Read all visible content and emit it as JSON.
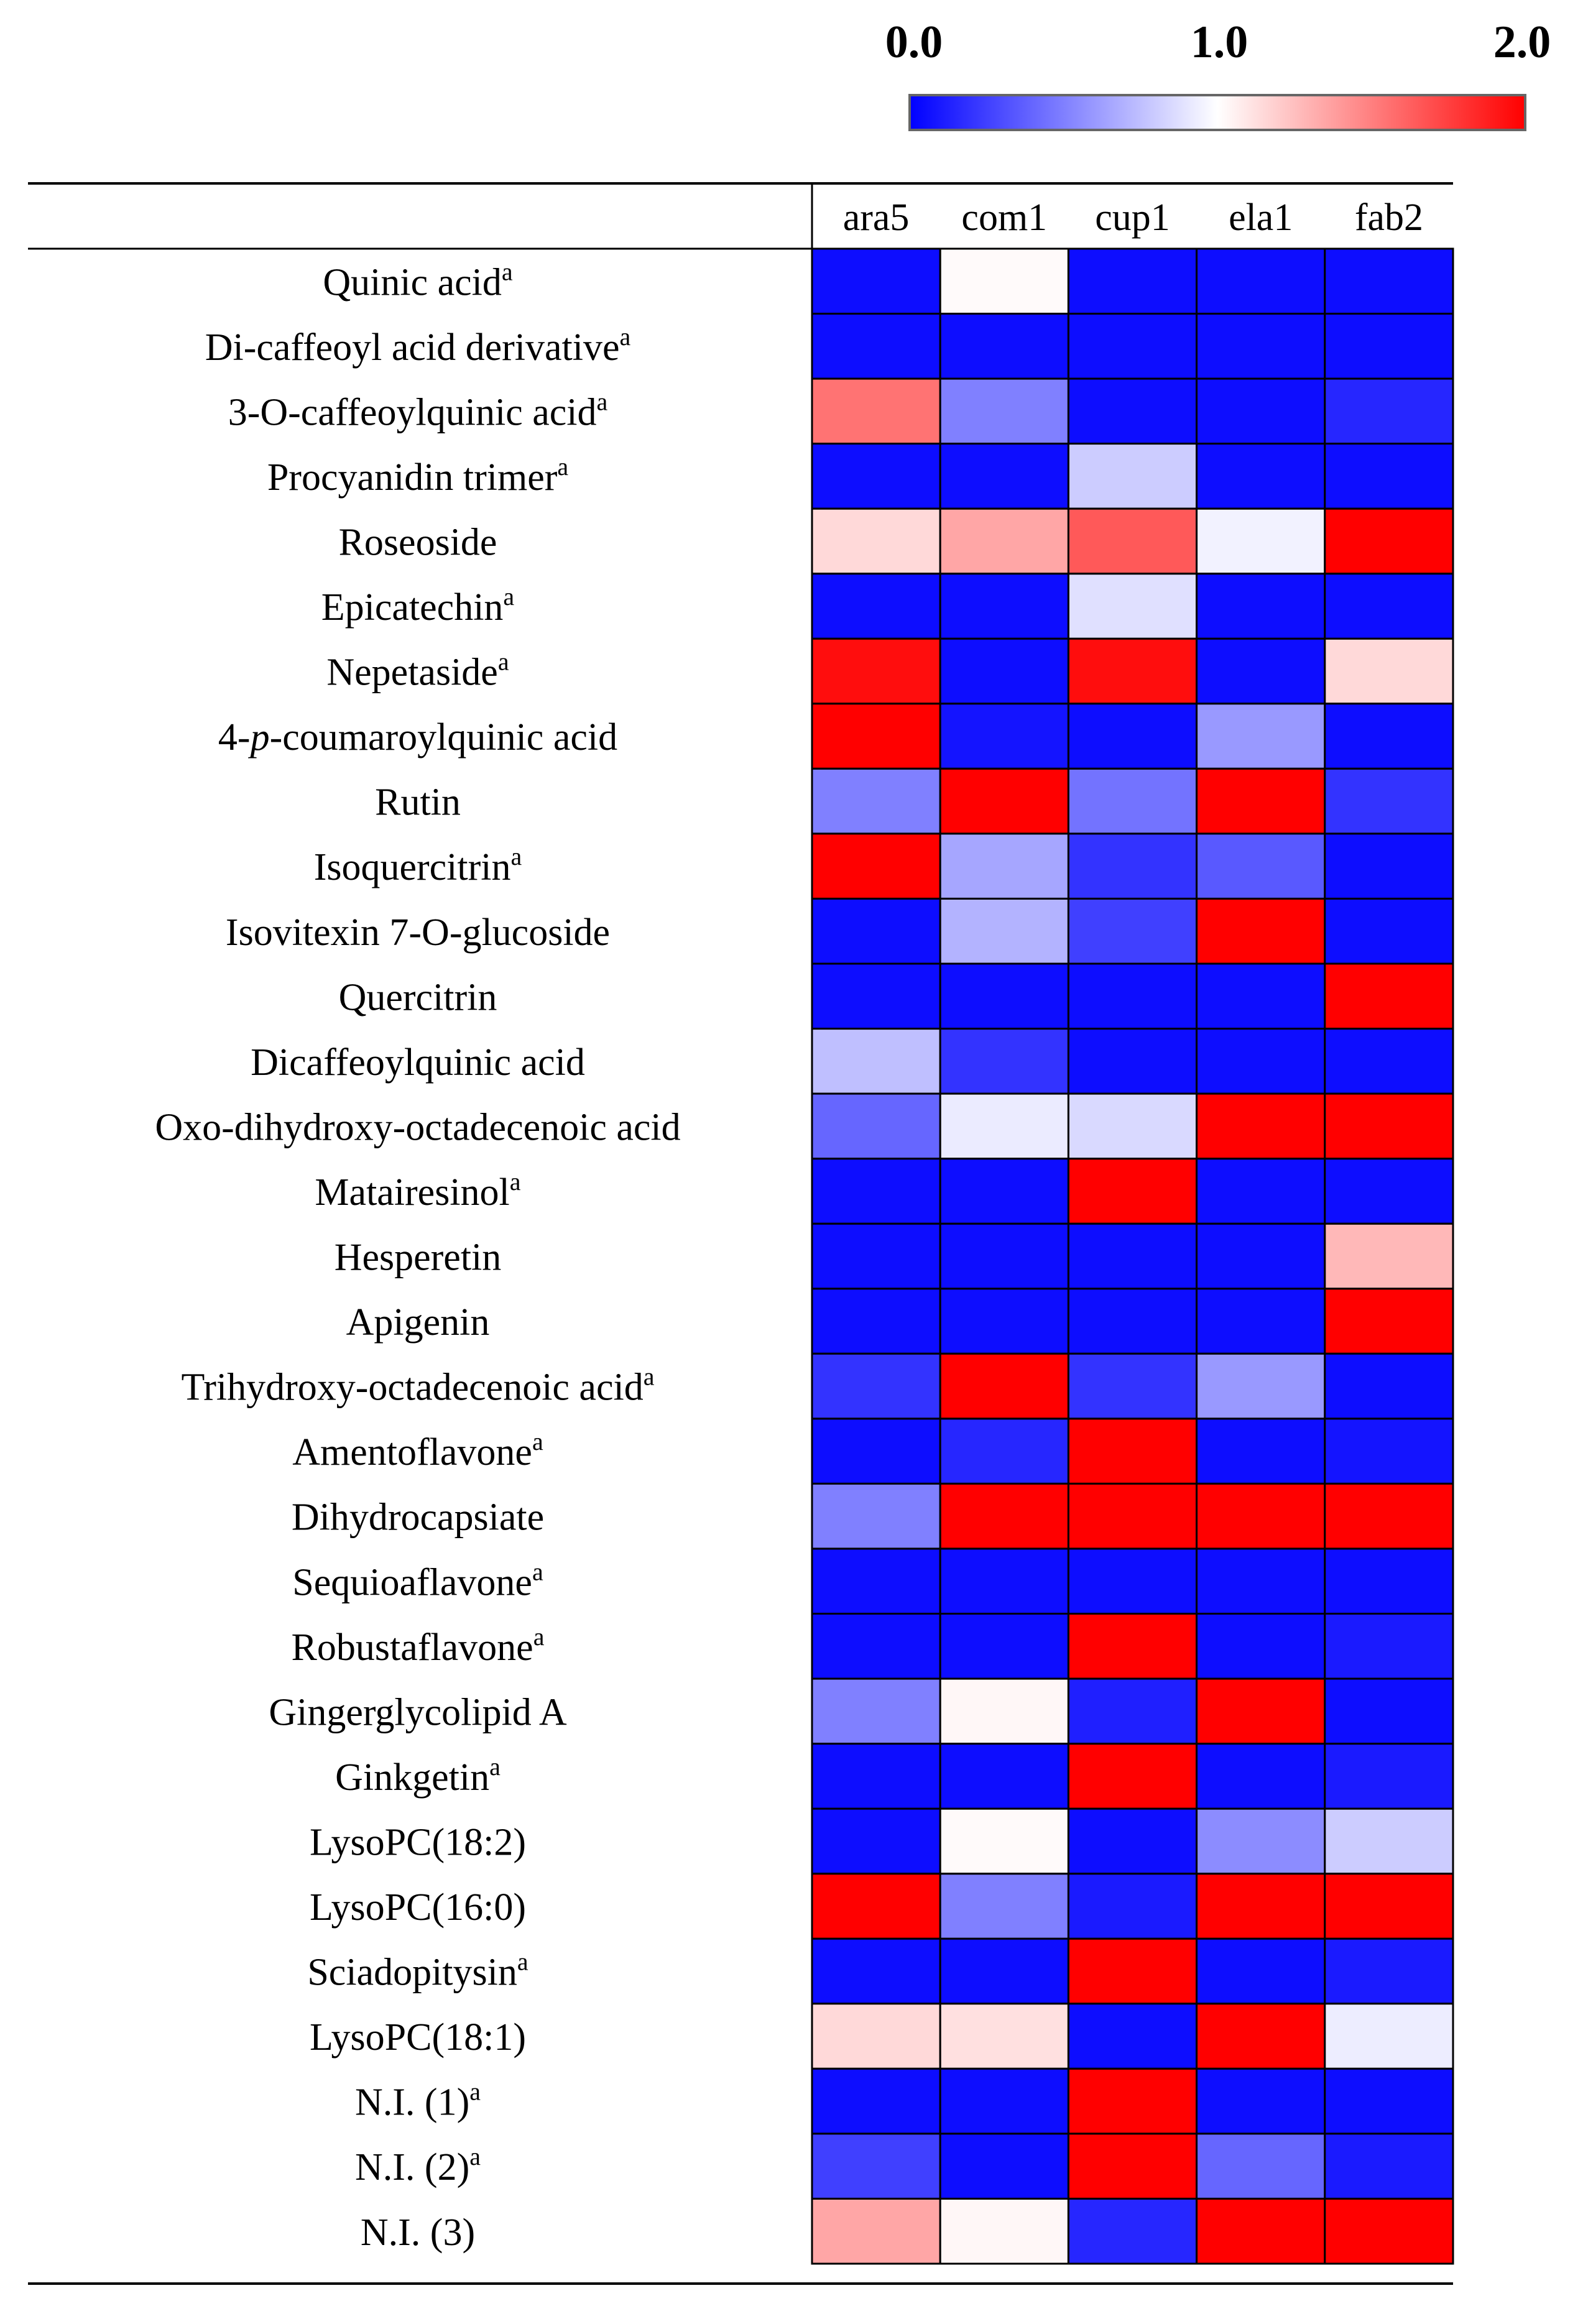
{
  "chart_data": {
    "type": "heatmap",
    "title": "",
    "colorscale": {
      "min": 0.0,
      "mid": 1.0,
      "max": 2.0,
      "tick_labels": [
        "0.0",
        "1.0",
        "2.0"
      ],
      "colors": {
        "low": "#0000ff",
        "mid": "#ffffff",
        "high": "#ff0000"
      }
    },
    "columns": [
      "ara5",
      "com1",
      "cup1",
      "ela1",
      "fab2"
    ],
    "rows": [
      {
        "label": "Quinic acid",
        "sup": "a",
        "values": [
          0.05,
          1.02,
          0.05,
          0.05,
          0.05
        ]
      },
      {
        "label": "Di-caffeoyl acid derivative",
        "sup": "a",
        "values": [
          0.05,
          0.05,
          0.05,
          0.05,
          0.05
        ]
      },
      {
        "label": "3-O-caffeoylquinic acid",
        "sup": "a",
        "values": [
          1.55,
          0.5,
          0.05,
          0.05,
          0.15
        ]
      },
      {
        "label": "Procyanidin trimer",
        "sup": "a",
        "values": [
          0.05,
          0.05,
          0.8,
          0.05,
          0.05
        ]
      },
      {
        "label": "Roseoside",
        "sup": "",
        "values": [
          1.15,
          1.35,
          1.65,
          0.95,
          2.0
        ]
      },
      {
        "label": "Epicatechin",
        "sup": "a",
        "values": [
          0.05,
          0.05,
          0.88,
          0.05,
          0.05
        ]
      },
      {
        "label": "Nepetaside",
        "sup": "a",
        "values": [
          1.95,
          0.05,
          1.95,
          0.05,
          1.15
        ]
      },
      {
        "label": "4-p-coumaroylquinic acid",
        "sup": "",
        "italic": "p",
        "prefix": "4-",
        "suffix": "-coumaroylquinic acid",
        "values": [
          2.0,
          0.08,
          0.05,
          0.6,
          0.05
        ]
      },
      {
        "label": "Rutin",
        "sup": "",
        "values": [
          0.5,
          2.0,
          0.45,
          2.0,
          0.2
        ]
      },
      {
        "label": "Isoquercitrin",
        "sup": "a",
        "values": [
          2.0,
          0.65,
          0.2,
          0.35,
          0.05
        ]
      },
      {
        "label": "Isovitexin 7-O-glucoside",
        "sup": "",
        "values": [
          0.05,
          0.7,
          0.25,
          2.0,
          0.05
        ]
      },
      {
        "label": "Quercitrin",
        "sup": "",
        "values": [
          0.05,
          0.05,
          0.05,
          0.05,
          2.0
        ]
      },
      {
        "label": "Dicaffeoylquinic acid",
        "sup": "",
        "values": [
          0.75,
          0.2,
          0.05,
          0.05,
          0.05
        ]
      },
      {
        "label": "Oxo-dihydroxy-octadecenoic acid",
        "sup": "",
        "values": [
          0.4,
          0.92,
          0.85,
          2.0,
          2.0
        ]
      },
      {
        "label": "Matairesinol",
        "sup": "a",
        "values": [
          0.05,
          0.05,
          2.0,
          0.05,
          0.05
        ]
      },
      {
        "label": "Hesperetin",
        "sup": "",
        "values": [
          0.05,
          0.05,
          0.05,
          0.05,
          1.28
        ]
      },
      {
        "label": "Apigenin",
        "sup": "",
        "values": [
          0.05,
          0.05,
          0.05,
          0.05,
          2.0
        ]
      },
      {
        "label": "Trihydroxy-octadecenoic acid",
        "sup": "a",
        "values": [
          0.2,
          2.0,
          0.2,
          0.6,
          0.05
        ]
      },
      {
        "label": "Amentoflavone",
        "sup": "a",
        "values": [
          0.05,
          0.15,
          2.0,
          0.05,
          0.08
        ]
      },
      {
        "label": "Dihydrocapsiate",
        "sup": "",
        "values": [
          0.5,
          2.0,
          2.0,
          2.0,
          2.0
        ]
      },
      {
        "label": "Sequioaflavone",
        "sup": "a",
        "values": [
          0.05,
          0.05,
          0.05,
          0.05,
          0.05
        ]
      },
      {
        "label": "Robustaflavone",
        "sup": "a",
        "values": [
          0.05,
          0.05,
          2.0,
          0.05,
          0.1
        ]
      },
      {
        "label": "Gingerglycolipid A",
        "sup": "",
        "values": [
          0.5,
          1.03,
          0.12,
          2.0,
          0.05
        ]
      },
      {
        "label": "Ginkgetin",
        "sup": "a",
        "values": [
          0.05,
          0.05,
          2.0,
          0.05,
          0.1
        ]
      },
      {
        "label": "LysoPC(18:2)",
        "sup": "",
        "values": [
          0.05,
          1.02,
          0.05,
          0.55,
          0.8
        ]
      },
      {
        "label": "LysoPC(16:0)",
        "sup": "",
        "values": [
          2.0,
          0.5,
          0.1,
          2.0,
          2.0
        ]
      },
      {
        "label": "Sciadopitysin",
        "sup": "a",
        "values": [
          0.05,
          0.05,
          2.0,
          0.05,
          0.1
        ]
      },
      {
        "label": "LysoPC(18:1)",
        "sup": "",
        "values": [
          1.15,
          1.12,
          0.05,
          2.0,
          0.93
        ]
      },
      {
        "label": "N.I. (1)",
        "sup": "a",
        "values": [
          0.05,
          0.05,
          2.0,
          0.05,
          0.05
        ]
      },
      {
        "label": "N.I. (2)",
        "sup": "a",
        "values": [
          0.25,
          0.05,
          2.0,
          0.4,
          0.1
        ]
      },
      {
        "label": "N.I. (3)",
        "sup": "",
        "values": [
          1.35,
          1.03,
          0.15,
          2.0,
          2.0
        ]
      }
    ]
  }
}
